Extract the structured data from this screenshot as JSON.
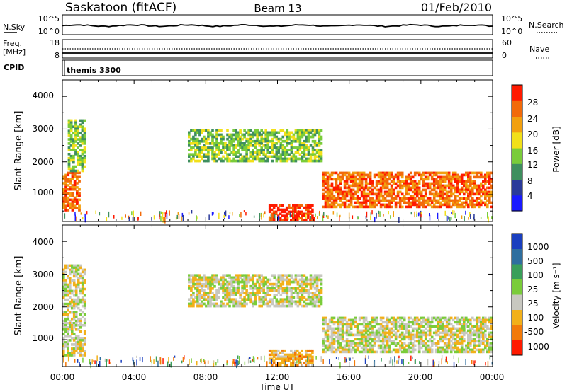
{
  "header": {
    "station": "Saskatoon (fitACF)",
    "beam": "Beam 13",
    "date": "01/Feb/2010"
  },
  "noise_panel": {
    "left_label": "N.Sky",
    "right_label": "N.Search",
    "left_ticks": [
      "10^5",
      "10^0"
    ],
    "right_ticks": [
      "10^5",
      "10^0"
    ]
  },
  "freq_panel": {
    "left_label_line1": "Freq.",
    "left_label_line2": "[MHz]",
    "right_label": "Nave",
    "left_ticks": [
      "18",
      "8"
    ],
    "right_ticks": [
      "60",
      "0"
    ]
  },
  "cpid_panel": {
    "label": "CPID",
    "value": "themis 3300"
  },
  "time_axis": {
    "label": "Time UT",
    "ticks": [
      "00:00",
      "04:00",
      "08:00",
      "12:00",
      "16:00",
      "20:00",
      "00:00"
    ]
  },
  "power_panel": {
    "ylabel": "Slant Range [km]",
    "yticks": [
      "4000",
      "3000",
      "2000",
      "1000"
    ],
    "colorbar_label": "Power [dB]",
    "colorbar_ticks": [
      "28",
      "24",
      "20",
      "16",
      "12",
      "8",
      "4"
    ],
    "colors": [
      "#1a1aff",
      "#2a3a9a",
      "#3f8f5f",
      "#7acc3a",
      "#f2e01a",
      "#f2a00f",
      "#f26a0a",
      "#ff1a00"
    ]
  },
  "velocity_panel": {
    "ylabel": "Slant Range [km]",
    "yticks": [
      "4000",
      "3000",
      "2000",
      "1000"
    ],
    "colorbar_label": "Velocity [m s⁻¹]",
    "colorbar_ticks": [
      "1000",
      "500",
      "100",
      "25",
      "-25",
      "-100",
      "-500",
      "-1000"
    ],
    "colors": [
      "#1a3fbf",
      "#2f6f9f",
      "#3a9f5a",
      "#7acc3a",
      "#c8c8c0",
      "#f2b01a",
      "#f27a0a",
      "#ff1a00"
    ]
  },
  "chart_data": {
    "type": "heatmap",
    "x_range_hours": [
      0,
      24
    ],
    "y_range_km": [
      180,
      4500
    ],
    "power_regions": [
      {
        "t0": 0.0,
        "t1": 1.0,
        "r0": 500,
        "r1": 1700,
        "level": 6
      },
      {
        "t0": 0.3,
        "t1": 1.3,
        "r0": 1700,
        "r1": 3300,
        "level": 3
      },
      {
        "t0": 7.0,
        "t1": 14.5,
        "r0": 2000,
        "r1": 3000,
        "level": 3
      },
      {
        "t0": 11.5,
        "t1": 14.0,
        "r0": 200,
        "r1": 700,
        "level": 7
      },
      {
        "t0": 14.5,
        "t1": 24.0,
        "r0": 600,
        "r1": 1700,
        "level": 6
      }
    ],
    "velocity_regions": [
      {
        "t0": 0.0,
        "t1": 1.3,
        "r0": 500,
        "r1": 3300,
        "level": 4
      },
      {
        "t0": 7.0,
        "t1": 14.5,
        "r0": 2000,
        "r1": 3000,
        "level": 4
      },
      {
        "t0": 11.5,
        "t1": 14.0,
        "r0": 200,
        "r1": 700,
        "level": 5
      },
      {
        "t0": 14.5,
        "t1": 24.0,
        "r0": 600,
        "r1": 1700,
        "level": 4
      }
    ]
  }
}
